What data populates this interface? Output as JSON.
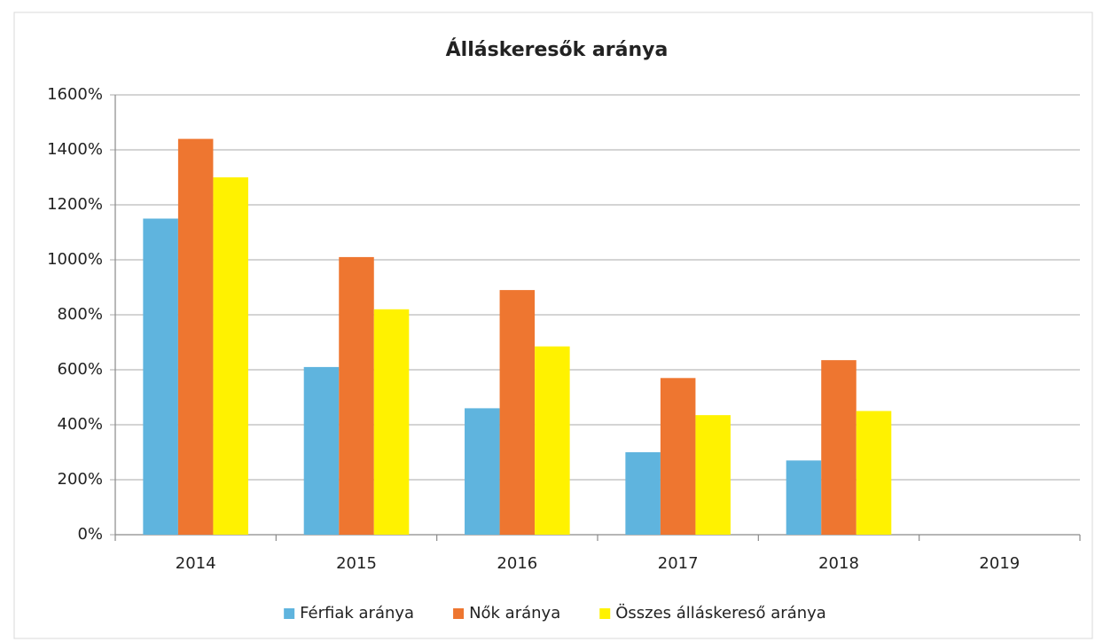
{
  "chart_data": {
    "type": "bar",
    "title": "Álláskeresők aránya",
    "categories": [
      "2014",
      "2015",
      "2016",
      "2017",
      "2018",
      "2019"
    ],
    "series": [
      {
        "name": "Férfiak aránya",
        "color": "#5fb4de",
        "values": [
          1150,
          610,
          460,
          300,
          270,
          null
        ]
      },
      {
        "name": "Nők aránya",
        "color": "#ee7630",
        "values": [
          1440,
          1010,
          890,
          570,
          635,
          null
        ]
      },
      {
        "name": "Összes álláskereső aránya",
        "color": "#fff200",
        "values": [
          1300,
          820,
          685,
          435,
          450,
          null
        ]
      }
    ],
    "ylim": [
      0,
      1600
    ],
    "yticks": [
      {
        "value": 0,
        "label": "0%"
      },
      {
        "value": 200,
        "label": "200%"
      },
      {
        "value": 400,
        "label": "400%"
      },
      {
        "value": 600,
        "label": "600%"
      },
      {
        "value": 800,
        "label": "800%"
      },
      {
        "value": 1000,
        "label": "1000%"
      },
      {
        "value": 1200,
        "label": "1200%"
      },
      {
        "value": 1400,
        "label": "1400%"
      },
      {
        "value": 1600,
        "label": "1600%"
      }
    ],
    "grid": true,
    "legend": "bottom"
  }
}
